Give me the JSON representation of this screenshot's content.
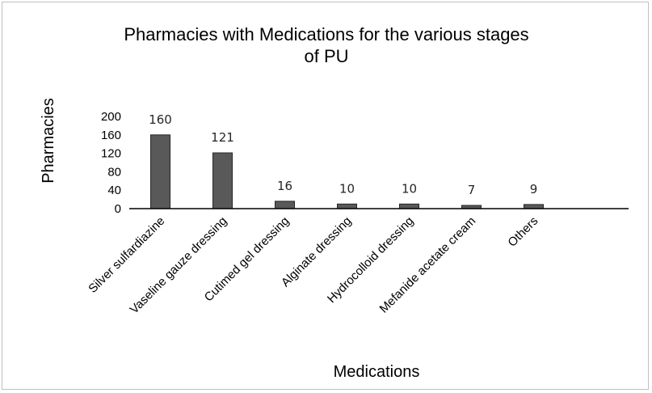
{
  "chart_data": {
    "type": "bar",
    "title_lines": [
      "Pharmacies with Medications for the various stages",
      "of PU"
    ],
    "xlabel": "Medications",
    "ylabel": "Pharmacies",
    "categories": [
      "Silver sulfardiazine",
      "Vaseline gauze dressing",
      "Cutimed gel dressing",
      "Alginate dressing",
      "Hydrocolloid dressing",
      "Mefanide acetate cream",
      "Others"
    ],
    "values": [
      160,
      121,
      16,
      10,
      10,
      7,
      9
    ],
    "data_labels": [
      "160",
      "121",
      "16",
      "10",
      "10",
      "7",
      "9"
    ],
    "yticks": [
      0,
      40,
      80,
      120,
      160,
      200
    ],
    "ylim": [
      0,
      200
    ],
    "grid": false,
    "legend": "none",
    "colors": {
      "bar_fill": "#595959",
      "bar_stroke": "#262626",
      "axis": "#000000"
    }
  }
}
